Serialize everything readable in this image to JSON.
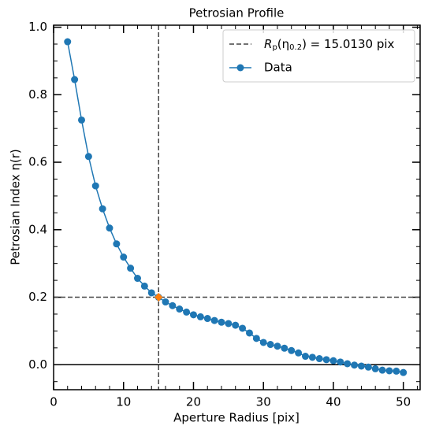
{
  "chart_data": {
    "type": "line",
    "title": "Petrosian Profile",
    "x_label": "Aperture Radius [pix]",
    "y_label": "Petrosian Index η(r)",
    "x": [
      2,
      3,
      4,
      5,
      6,
      7,
      8,
      9,
      10,
      11,
      12,
      13,
      14,
      15,
      16,
      17,
      18,
      19,
      20,
      21,
      22,
      23,
      24,
      25,
      26,
      27,
      28,
      29,
      30,
      31,
      32,
      33,
      34,
      35,
      36,
      37,
      38,
      39,
      40,
      41,
      42,
      43,
      44,
      45,
      46,
      47,
      48,
      49,
      50
    ],
    "series": [
      {
        "name": "Data",
        "color": "#1f77b4",
        "values": [
          0.957,
          0.845,
          0.725,
          0.617,
          0.53,
          0.462,
          0.405,
          0.358,
          0.319,
          0.286,
          0.256,
          0.233,
          0.213,
          0.2,
          0.186,
          0.175,
          0.165,
          0.156,
          0.148,
          0.142,
          0.137,
          0.131,
          0.126,
          0.122,
          0.117,
          0.108,
          0.094,
          0.078,
          0.066,
          0.06,
          0.055,
          0.049,
          0.042,
          0.035,
          0.025,
          0.022,
          0.018,
          0.015,
          0.012,
          0.008,
          0.003,
          -0.001,
          -0.004,
          -0.007,
          -0.012,
          -0.016,
          -0.018,
          -0.019,
          -0.023
        ]
      }
    ],
    "petrosian_radius": {
      "x": 15.013,
      "y": 0.2,
      "color": "#ff7f0e",
      "line_color": "#444444",
      "label_parts": [
        "R",
        "p",
        "(η",
        "0.2",
        ") = 15.0130 pix"
      ]
    },
    "zero_line": 0,
    "xlim": [
      0,
      52.4
    ],
    "ylim": [
      -0.074,
      1.006
    ],
    "xticks": [
      0,
      10,
      20,
      30,
      40,
      50
    ],
    "yticks": [
      {
        "value": 0,
        "label": "0.0"
      },
      {
        "value": 0.2,
        "label": "0.2"
      },
      {
        "value": 0.4,
        "label": "0.4"
      },
      {
        "value": 0.6,
        "label": "0.6"
      },
      {
        "value": 0.8,
        "label": "0.8"
      },
      {
        "value": 1,
        "label": "1.0"
      }
    ],
    "xminorticks": [
      2,
      4,
      6,
      8,
      12,
      14,
      16,
      18,
      22,
      24,
      26,
      28,
      32,
      34,
      36,
      38,
      42,
      44,
      46,
      48,
      52
    ],
    "yminorticks": [
      -0.05,
      0.05,
      0.1,
      0.15,
      0.25,
      0.3,
      0.35,
      0.45,
      0.5,
      0.55,
      0.65,
      0.7,
      0.75,
      0.85,
      0.9,
      0.95
    ],
    "legend": "upper right"
  }
}
